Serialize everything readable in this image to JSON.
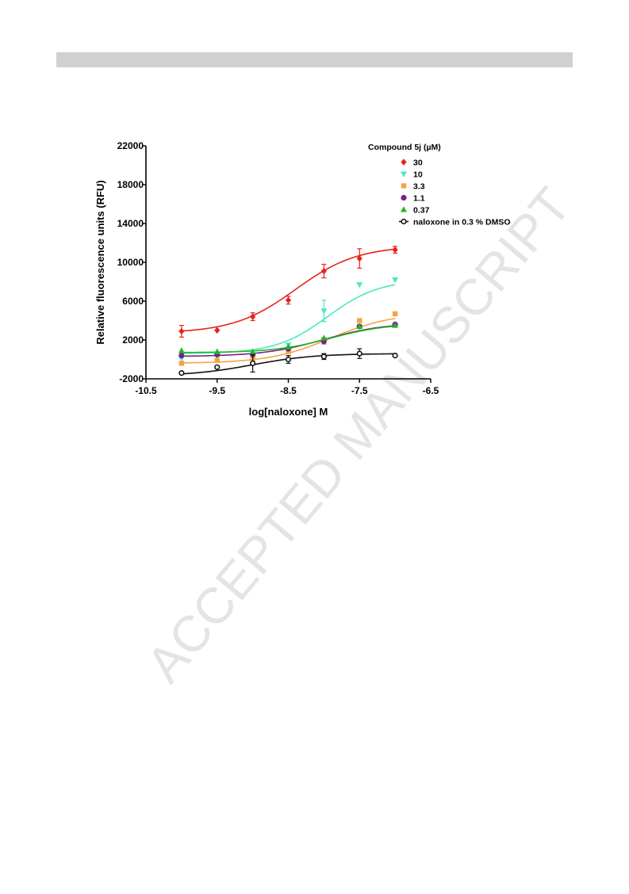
{
  "page": {
    "header_bar_color": "#d0d0d0",
    "watermark": "ACCEPTED MANUSCRIPT"
  },
  "chart_data": {
    "type": "scatter",
    "title": "",
    "xlabel": "log[naloxone] M",
    "ylabel": "Relative fluorescence units (RFU)",
    "xlim": [
      -10.5,
      -6.5
    ],
    "ylim": [
      -2000,
      22000
    ],
    "x_ticks": [
      -10.5,
      -9.5,
      -8.5,
      -7.5,
      -6.5
    ],
    "x_tick_labels": [
      "-10.5",
      "-9.5",
      "-8.5",
      "-7.5",
      "-6.5"
    ],
    "y_ticks": [
      -2000,
      2000,
      6000,
      10000,
      14000,
      18000,
      22000
    ],
    "y_tick_labels": [
      "-2000",
      "2000",
      "6000",
      "10000",
      "14000",
      "18000",
      "22000"
    ],
    "grid": false,
    "legend_title": "Compound 5j (µM)",
    "legend_position": "top-right",
    "x": [
      -10.0,
      -9.5,
      -9.0,
      -8.5,
      -8.0,
      -7.5,
      -7.0
    ],
    "series": [
      {
        "name": "30",
        "color": "#e8221c",
        "marker": "diamond",
        "values": [
          2900,
          3000,
          4400,
          6100,
          9100,
          10400,
          11300
        ],
        "errors": [
          600,
          0,
          400,
          400,
          700,
          1000,
          350
        ],
        "fit": {
          "bottom": 2700,
          "top": 11700,
          "logEC50": -8.4,
          "hill": 1.0
        }
      },
      {
        "name": "10",
        "color": "#4de8bf",
        "marker": "triangle-down",
        "values": [
          100,
          300,
          800,
          1500,
          5000,
          7700,
          8200
        ],
        "errors": [
          0,
          0,
          0,
          0,
          1100,
          0,
          0
        ],
        "fit": {
          "bottom": 600,
          "top": 8200,
          "logEC50": -7.95,
          "hill": 1.2
        }
      },
      {
        "name": "3.3",
        "color": "#f5a442",
        "marker": "square",
        "values": [
          -400,
          -100,
          100,
          800,
          2000,
          4000,
          4700
        ],
        "errors": [
          0,
          0,
          0,
          0,
          0,
          0,
          0
        ],
        "fit": {
          "bottom": -400,
          "top": 4800,
          "logEC50": -7.9,
          "hill": 1.0
        }
      },
      {
        "name": "1.1",
        "color": "#7a1f8f",
        "marker": "circle",
        "values": [
          400,
          500,
          500,
          1100,
          1900,
          3400,
          3600
        ],
        "errors": [
          0,
          0,
          0,
          0,
          300,
          0,
          0
        ],
        "fit": {
          "bottom": 300,
          "top": 3800,
          "logEC50": -8.0,
          "hill": 1.0
        }
      },
      {
        "name": "0.37",
        "color": "#1fb81f",
        "marker": "triangle-up",
        "values": [
          900,
          800,
          800,
          1300,
          2200,
          3400,
          3500
        ],
        "errors": [
          0,
          0,
          0,
          0,
          0,
          0,
          0
        ],
        "fit": {
          "bottom": 700,
          "top": 3700,
          "logEC50": -7.9,
          "hill": 1.1
        }
      },
      {
        "name": "naloxone in  0.3 % DMSO",
        "color": "#111111",
        "marker": "open-circle",
        "values": [
          -1400,
          -800,
          -400,
          0,
          300,
          600,
          400
        ],
        "errors": [
          0,
          0,
          900,
          400,
          300,
          500,
          0
        ],
        "fit": {
          "bottom": -1700,
          "top": 600,
          "logEC50": -9.0,
          "hill": 1.0
        }
      }
    ]
  }
}
